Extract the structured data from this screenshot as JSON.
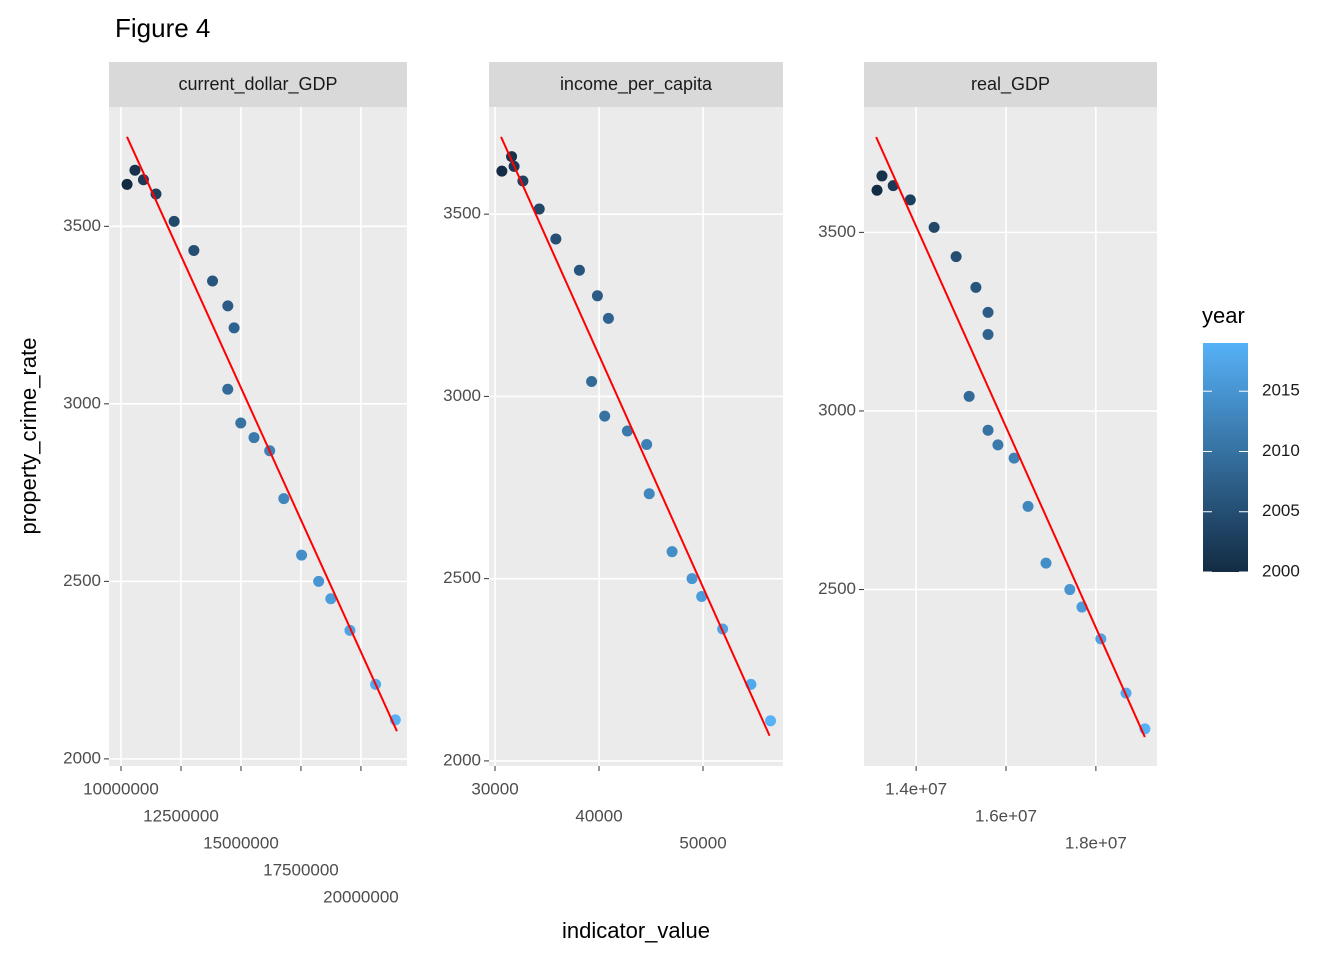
{
  "chart_data": {
    "type": "scatter",
    "title": "Figure 4",
    "xlabel": "indicator_value",
    "ylabel": "property_crime_rate",
    "grid": true,
    "colorbar": {
      "title": "year",
      "values": [
        2000,
        2001,
        2002,
        2003,
        2004,
        2005,
        2006,
        2007,
        2008,
        2009,
        2010,
        2011,
        2012,
        2013,
        2014,
        2015,
        2016,
        2017,
        2018,
        2019
      ],
      "lim": [
        2000,
        2019
      ],
      "ticks": [
        2000,
        2005,
        2010,
        2015
      ],
      "colors": [
        "#132B43",
        "#56B1F7"
      ]
    },
    "panels": [
      {
        "title": "current_dollar_GDP",
        "x": [
          10252000,
          10582000,
          10936000,
          11458000,
          12214000,
          13037000,
          13815000,
          14452000,
          14713000,
          14449000,
          14992000,
          15543000,
          16197000,
          16785000,
          17527000,
          18238000,
          18745000,
          19543000,
          20612000,
          21433000
        ],
        "y": [
          3618,
          3658,
          3631,
          3591,
          3514,
          3432,
          3346,
          3276,
          3214,
          3041,
          2946,
          2905,
          2868,
          2733,
          2574,
          2500,
          2451,
          2362,
          2210,
          2110
        ],
        "xlim": [
          9500000,
          21920000
        ],
        "xticks": [
          10000000,
          12500000,
          15000000,
          17500000,
          20000000
        ],
        "ylim": [
          1980,
          3836
        ],
        "yticks": [
          2000,
          2500,
          3000,
          3500
        ],
        "fit": {
          "color": "#ff0000",
          "x": [
            10250000,
            21500000
          ],
          "y": [
            3752,
            2078
          ]
        }
      },
      {
        "title": "income_per_capita",
        "x": [
          30657,
          31589,
          31832,
          32681,
          34251,
          35849,
          38114,
          39844,
          40904,
          39284,
          40545,
          42727,
          44582,
          44826,
          47025,
          48940,
          49870,
          51885,
          54606,
          56490
        ],
        "y": [
          3618,
          3658,
          3631,
          3591,
          3514,
          3432,
          3346,
          3276,
          3214,
          3041,
          2946,
          2905,
          2868,
          2733,
          2574,
          2500,
          2451,
          2362,
          2210,
          2110
        ],
        "xlim": [
          29420,
          57690
        ],
        "xticks": [
          30000,
          40000,
          50000
        ],
        "ylim": [
          1986,
          3794
        ],
        "yticks": [
          2000,
          2500,
          3000,
          3500
        ],
        "fit": {
          "color": "#ff0000",
          "x": [
            30580,
            56400
          ],
          "y": [
            3712,
            2069
          ]
        }
      },
      {
        "title": "real_GDP",
        "x": [
          13130000,
          13240000,
          13490000,
          13870000,
          14400000,
          14890000,
          15330000,
          15600000,
          15600000,
          15180000,
          15600000,
          15820000,
          16180000,
          16490000,
          16890000,
          17420000,
          17690000,
          18110000,
          18670000,
          19090000
        ],
        "y": [
          3618,
          3658,
          3631,
          3591,
          3514,
          3432,
          3346,
          3276,
          3214,
          3041,
          2946,
          2905,
          2868,
          2733,
          2574,
          2500,
          2451,
          2362,
          2210,
          2110
        ],
        "xlim": [
          12840000,
          19360000
        ],
        "xticks": [
          {
            "value": 14000000,
            "label": "1.4e+07"
          },
          {
            "value": 16000000,
            "label": "1.6e+07"
          },
          {
            "value": 18000000,
            "label": "1.8e+07"
          }
        ],
        "ylim": [
          2006,
          3851
        ],
        "yticks": [
          2500,
          3000,
          3500
        ],
        "fit": {
          "color": "#ff0000",
          "x": [
            13110000,
            19090000
          ],
          "y": [
            3767,
            2087
          ]
        }
      }
    ]
  }
}
